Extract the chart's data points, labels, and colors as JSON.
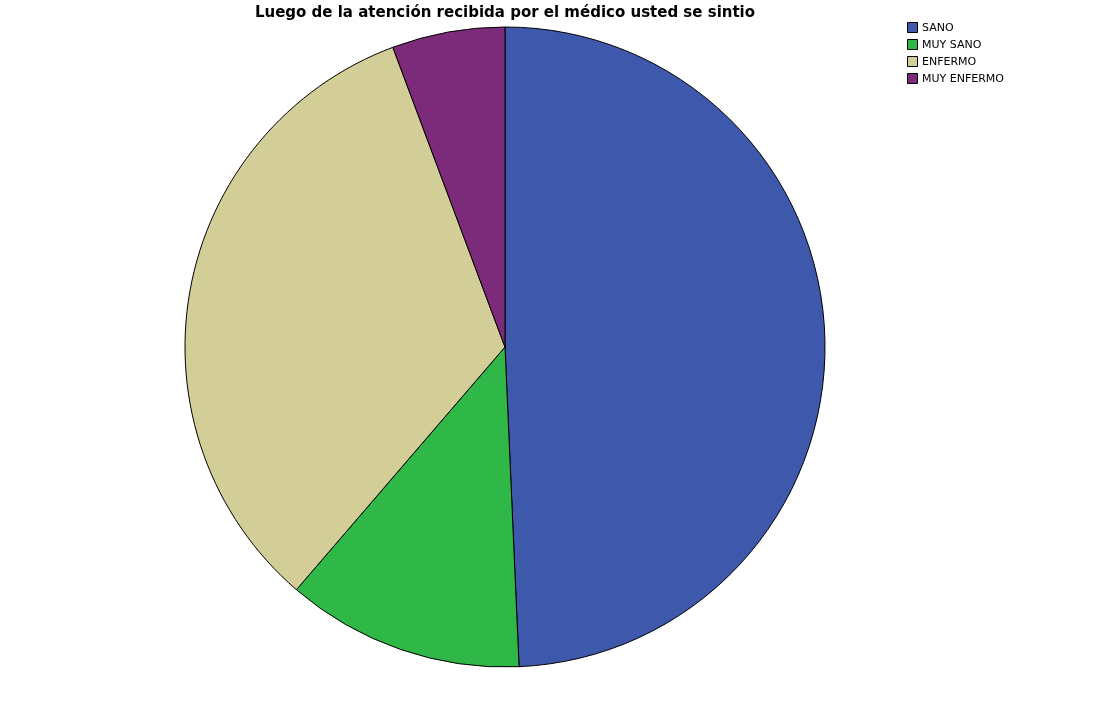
{
  "chart_data": {
    "type": "pie",
    "title": "Luego de la atención recibida por el médico usted se sintio",
    "categories": [
      "SANO",
      "MUY SANO",
      "ENFERMO",
      "MUY ENFERMO"
    ],
    "values": [
      49.3,
      12.0,
      33.0,
      5.7
    ],
    "colors": [
      "#3e58ac",
      "#2fb847",
      "#d3ce97",
      "#7b2b7a"
    ],
    "legend": "top right"
  }
}
